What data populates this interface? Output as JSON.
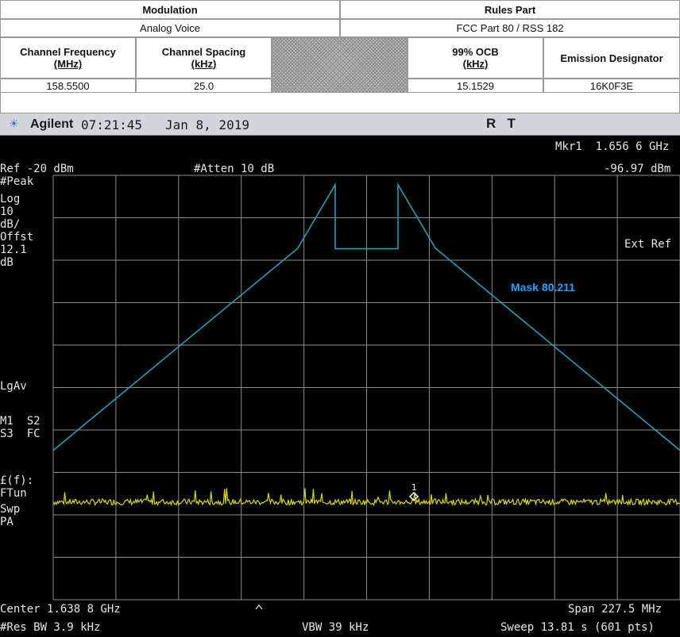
{
  "table": {
    "modulation_header": "Modulation",
    "modulation_value": "Analog Voice",
    "rules_header": "Rules Part",
    "rules_value": "FCC Part 80 / RSS 182",
    "channel_frequency_header": "Channel Frequency",
    "channel_frequency_unit": "(MHz)",
    "channel_frequency_value": "158.5500",
    "channel_spacing_header": "Channel Spacing",
    "channel_spacing_unit": "(kHz)",
    "channel_spacing_value": "25.0",
    "ocb_header": "99% OCB",
    "ocb_unit": "(kHz)",
    "ocb_value": "15.1529",
    "emission_header": "Emission Designator",
    "emission_value": "16K0F3E"
  },
  "titlebar": {
    "brand": "Agilent",
    "time": "07:21:45",
    "date": "Jan 8, 2019",
    "status": "R   T"
  },
  "analyzer": {
    "marker_label": "Mkr1  1.656 6 GHz",
    "marker_value": "-96.97 dBm",
    "ref_level": "Ref -20 dBm",
    "attenuation": "#Atten 10 dB",
    "ext_ref": "Ext Ref",
    "side_labels": [
      "#Peak",
      "Log",
      "10",
      "dB/",
      "Offst",
      "12.1",
      "dB",
      "LgAv",
      "M1  S2",
      "S3  FC",
      "£(f):",
      "FTun",
      "Swp",
      "PA"
    ],
    "center": "Center 1.638 8 GHz",
    "span": "Span 227.5 MHz",
    "res_bw": "#Res BW 3.9 kHz",
    "vbw": "VBW 39 kHz",
    "sweep": "Sweep 13.81 s (601 pts)",
    "mask_label": "Mask 80.211",
    "marker_number": "1",
    "colors": {
      "mask": "#1fa0b4",
      "trace": "#d8d800",
      "grid": "#8c8c8c",
      "mask_label": "#19a6ff"
    }
  },
  "chart_data": {
    "type": "line",
    "title": "",
    "xlabel": "",
    "ylabel": "",
    "x_center_ghz": 1.6388,
    "x_span_mhz": 227.5,
    "ylim": [
      -120,
      -20
    ],
    "y_units": "dBm",
    "y_scale": "10 dB/div",
    "series": [
      {
        "name": "Mask 80.211",
        "x_mhz_offset": [
          -113.75,
          -25.0,
          -11.4,
          -11.4,
          11.4,
          11.4,
          25.0,
          113.75
        ],
        "values": [
          -84.8,
          -37.2,
          -22.2,
          -37.3,
          -37.3,
          -22.2,
          -37.2,
          -84.8
        ]
      },
      {
        "name": "",
        "x_mhz_offset": [
          -113.75,
          113.75
        ],
        "values": [
          -96.97,
          -96.97
        ]
      }
    ],
    "marker": {
      "label": "1",
      "freq_ghz": 1.6566,
      "value_dbm": -96.97
    }
  }
}
